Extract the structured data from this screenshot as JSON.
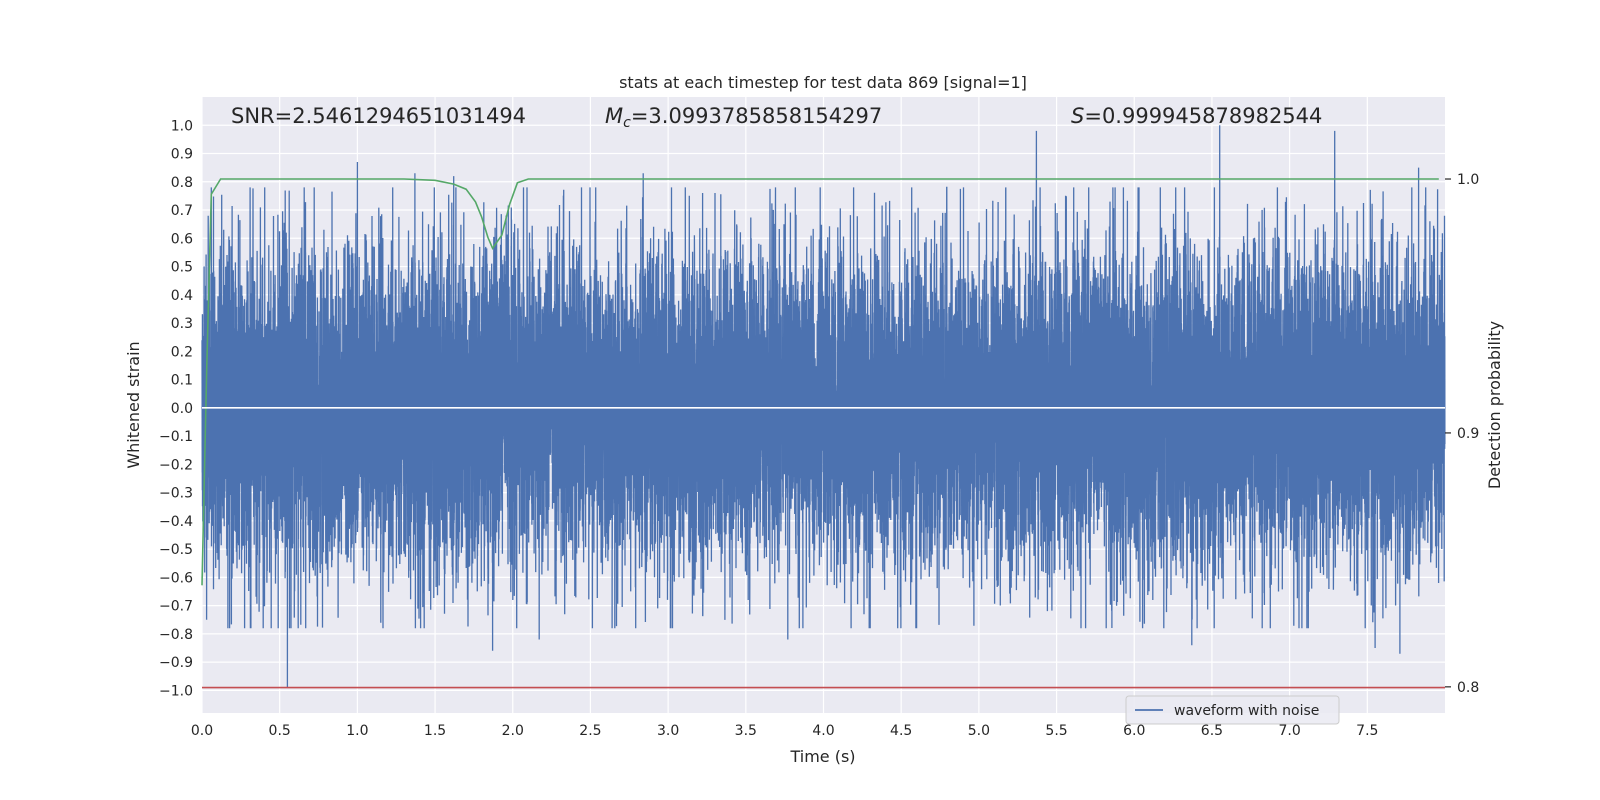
{
  "chart_data": {
    "type": "line",
    "title": "stats at each timestep for test data 869 [signal=1]",
    "xlabel": "Time (s)",
    "ylabel": "Whitened strain",
    "y2label": "Detection probability",
    "xlim": [
      0.0,
      8.0
    ],
    "ylim": [
      -1.08,
      1.1
    ],
    "y2lim": [
      0.7897,
      1.0323
    ],
    "xticks": [
      0.0,
      0.5,
      1.0,
      1.5,
      2.0,
      2.5,
      3.0,
      3.5,
      4.0,
      4.5,
      5.0,
      5.5,
      6.0,
      6.5,
      7.0,
      7.5
    ],
    "xtick_labels": [
      "0.0",
      "0.5",
      "1.0",
      "1.5",
      "2.0",
      "2.5",
      "3.0",
      "3.5",
      "4.0",
      "4.5",
      "5.0",
      "5.5",
      "6.0",
      "6.5",
      "7.0",
      "7.5"
    ],
    "yticks": [
      1.0,
      0.9,
      0.8,
      0.7,
      0.6,
      0.5,
      0.4,
      0.3,
      0.2,
      0.1,
      0.0,
      -0.1,
      -0.2,
      -0.3,
      -0.4,
      -0.5,
      -0.6,
      -0.7,
      -0.8,
      -0.9,
      -1.0
    ],
    "ytick_labels": [
      "1.0",
      "0.9",
      "0.8",
      "0.7",
      "0.6",
      "0.5",
      "0.4",
      "0.3",
      "0.2",
      "0.1",
      "0.0",
      "−0.1",
      "−0.2",
      "−0.3",
      "−0.4",
      "−0.5",
      "−0.6",
      "−0.7",
      "−0.8",
      "−0.9",
      "−1.0"
    ],
    "y2ticks": [
      1.0,
      0.9,
      0.8
    ],
    "y2tick_labels": [
      "1.0",
      "0.9",
      "0.8"
    ],
    "grid": true,
    "legend_placement": "lower-center-right",
    "annotations": {
      "snr": "SNR=2.5461294651031494",
      "mc_sym": "M",
      "mc_sub": "c",
      "mc_val": "=3.0993785858154297",
      "s_sym": "S",
      "s_val": "=0.999945878982544"
    },
    "series": [
      {
        "name": "waveform with noise",
        "color": "#4c72b0",
        "axis": "left",
        "style": "dense-noise",
        "x_range": [
          0.0,
          8.0
        ],
        "samples_per_second": 2048,
        "typical_amplitude": 0.28,
        "peak_highs": [
          [
            0.04,
            0.68
          ],
          [
            0.55,
            0.64
          ],
          [
            1.0,
            0.87
          ],
          [
            1.37,
            0.83
          ],
          [
            1.62,
            0.82
          ],
          [
            2.84,
            0.83
          ],
          [
            5.37,
            0.98
          ],
          [
            6.55,
            1.0
          ],
          [
            7.29,
            0.98
          ],
          [
            7.83,
            0.85
          ]
        ],
        "peak_lows": [
          [
            0.03,
            -0.75
          ],
          [
            0.55,
            -0.99
          ],
          [
            1.87,
            -0.86
          ],
          [
            2.17,
            -0.82
          ],
          [
            3.77,
            -0.82
          ],
          [
            6.37,
            -0.84
          ],
          [
            7.55,
            -0.85
          ],
          [
            7.71,
            -0.87
          ]
        ]
      },
      {
        "name": "",
        "color": "#55a868",
        "axis": "right",
        "style": "line",
        "x": [
          0.0,
          0.03,
          0.06,
          0.12,
          0.5,
          1.0,
          1.3,
          1.5,
          1.62,
          1.7,
          1.76,
          1.8,
          1.84,
          1.87,
          1.93,
          1.98,
          2.03,
          2.1,
          3.0,
          5.0,
          7.96
        ],
        "y": [
          0.84,
          0.925,
          0.994,
          1.0,
          1.0,
          1.0,
          1.0,
          0.9995,
          0.998,
          0.996,
          0.991,
          0.985,
          0.977,
          0.9727,
          0.978,
          0.99,
          0.9985,
          1.0,
          1.0,
          1.0,
          1.0
        ]
      },
      {
        "name": "",
        "color": "#c44e52",
        "axis": "left",
        "style": "line",
        "x": [
          0.0,
          8.0
        ],
        "y": [
          -0.99,
          -0.99
        ]
      },
      {
        "name": "",
        "color": "#ffffff",
        "axis": "left",
        "style": "line",
        "x": [
          0.0,
          8.0
        ],
        "y": [
          0.0,
          0.0
        ]
      }
    ]
  }
}
